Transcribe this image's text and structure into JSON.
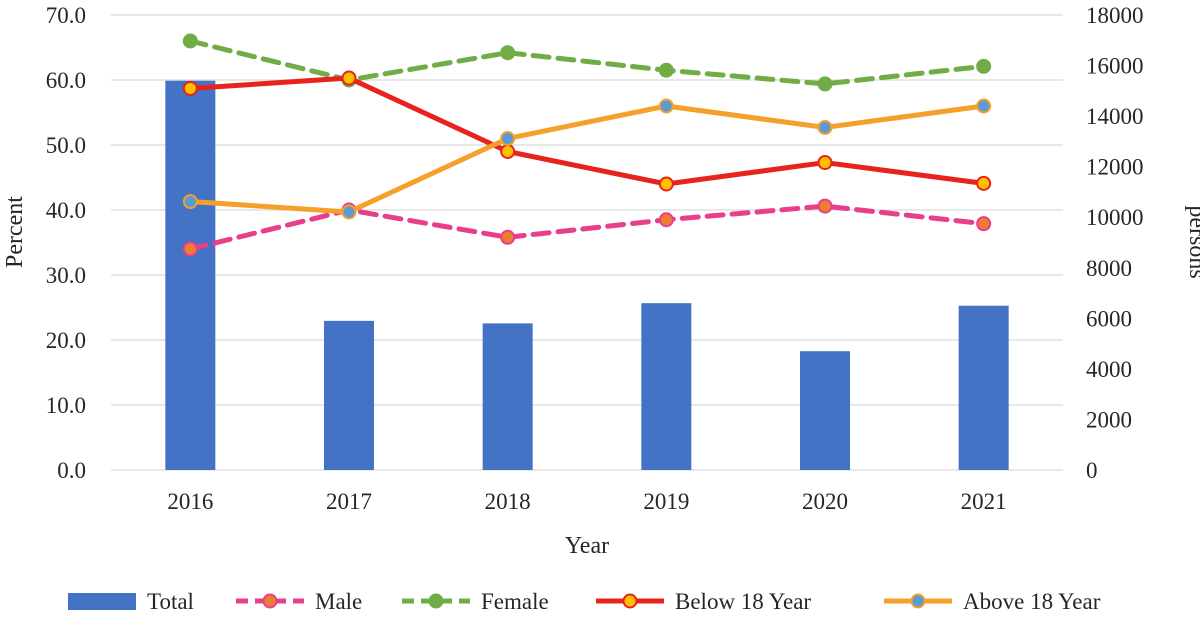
{
  "chart_data": {
    "type": "bar+line",
    "title": "",
    "xlabel": "Year",
    "ylabel_left": "Percent",
    "ylabel_right": "persons",
    "categories": [
      "2016",
      "2017",
      "2018",
      "2019",
      "2020",
      "2021"
    ],
    "y_left": {
      "min": 0,
      "max": 70,
      "step": 10,
      "tick_labels": [
        "0.0",
        "10.0",
        "20.0",
        "30.0",
        "40.0",
        "50.0",
        "60.0",
        "70.0"
      ]
    },
    "y_right": {
      "min": 0,
      "max": 18000,
      "step": 2000,
      "tick_labels": [
        "0",
        "2000",
        "4000",
        "6000",
        "8000",
        "10000",
        "12000",
        "14000",
        "16000",
        "18000"
      ]
    },
    "grid": true,
    "legend_position": "bottom",
    "series": [
      {
        "name": "Total",
        "kind": "bar",
        "axis": "right",
        "color": "#4472C4",
        "values": [
          15400,
          5900,
          5800,
          6600,
          4700,
          6500
        ]
      },
      {
        "name": "Male",
        "kind": "line",
        "axis": "left",
        "color": "#E83E8C",
        "dash": true,
        "marker_fill": "#ED7D31",
        "values": [
          34.0,
          40.0,
          35.8,
          38.5,
          40.6,
          37.9
        ]
      },
      {
        "name": "Female",
        "kind": "line",
        "axis": "left",
        "color": "#70AD47",
        "dash": true,
        "marker_fill": "#70AD47",
        "values": [
          66.0,
          60.0,
          64.2,
          61.5,
          59.4,
          62.1
        ]
      },
      {
        "name": "Below 18 Year",
        "kind": "line",
        "axis": "left",
        "color": "#E8221D",
        "dash": false,
        "marker_fill": "#FFC000",
        "values": [
          58.7,
          60.3,
          49.0,
          44.0,
          47.3,
          44.1
        ]
      },
      {
        "name": "Above 18 Year",
        "kind": "line",
        "axis": "left",
        "color": "#F5A02A",
        "dash": false,
        "marker_fill": "#5B9BD5",
        "values": [
          41.3,
          39.7,
          51.0,
          56.0,
          52.7,
          56.0
        ]
      }
    ]
  }
}
